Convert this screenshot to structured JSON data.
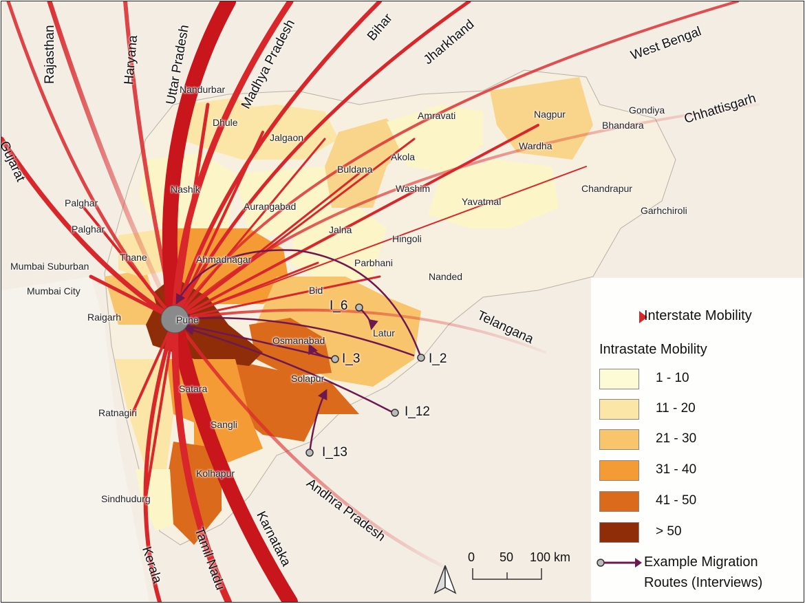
{
  "map": {
    "origin_city": "Pune",
    "interstate_states": [
      "Rajasthan",
      "Haryana",
      "Uttar Pradesh",
      "Madhya Pradesh",
      "Bihar",
      "Jharkhand",
      "West Bengal",
      "Chhattisgarh",
      "Gujarat",
      "Telangana",
      "Andhra Pradesh",
      "Karnataka",
      "Tamil Nadu",
      "Kerala"
    ],
    "districts": [
      "Nandurbar",
      "Dhule",
      "Jalgaon",
      "Amravati",
      "Nagpur",
      "Gondiya",
      "Bhandara",
      "Wardha",
      "Buldana",
      "Akola",
      "Washim",
      "Yavatmal",
      "Chandrapur",
      "Garhchiroli",
      "Nashik",
      "Aurangabad",
      "Jalna",
      "Hingoli",
      "Parbhani",
      "Nanded",
      "Bid",
      "Latur",
      "Osmanabad",
      "Solapur",
      "Ahmadnagar",
      "Palghar",
      "Palghar",
      "Thane",
      "Mumbai Suburban",
      "Mumbai City",
      "Raigarh",
      "Satara",
      "Sangli",
      "Ratnagiri",
      "Kolhapur",
      "Sindhudurg"
    ],
    "interview_routes": [
      "I_6",
      "I_3",
      "I_2",
      "I_12",
      "I_13"
    ]
  },
  "legend": {
    "interstate_title": "Interstate Mobility",
    "intrastate_title": "Intrastate Mobility",
    "classes": [
      {
        "label": "1 - 10",
        "color": "#fcfbd6"
      },
      {
        "label": "11 - 20",
        "color": "#fbe6a8"
      },
      {
        "label": "21 - 30",
        "color": "#f8c46c"
      },
      {
        "label": "31 - 40",
        "color": "#f49b36"
      },
      {
        "label": "41 - 50",
        "color": "#dc6a1d"
      },
      {
        "label": "> 50",
        "color": "#8e2d08"
      }
    ],
    "routes_label_1": "Example Migration",
    "routes_label_2": "Routes (Interviews)",
    "interstate_color": "#d9262a",
    "route_color": "#6e1850"
  },
  "scale": {
    "t0": "0",
    "t1": "50",
    "t2": "100 km"
  }
}
